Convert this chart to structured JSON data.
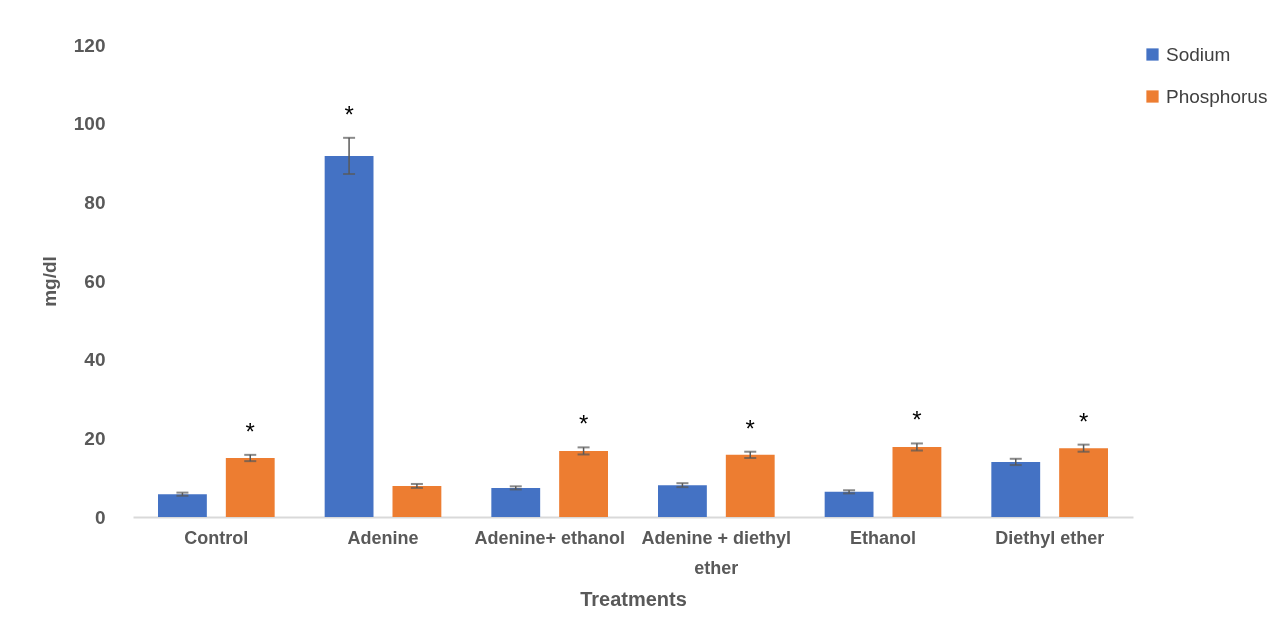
{
  "chart_data": {
    "type": "bar",
    "xlabel": "Treatments",
    "ylabel": "mg/dl",
    "categories": [
      "Control",
      "Adenine",
      "Adenine+ ethanol",
      "Adenine + diethyl ether",
      "Ethanol",
      "Diethyl ether"
    ],
    "series": [
      {
        "name": "Sodium",
        "color": "#4472c4",
        "values": [
          5.8,
          91.8,
          7.4,
          8.1,
          6.4,
          14.0
        ],
        "errors": [
          0.4,
          4.6,
          0.4,
          0.5,
          0.4,
          0.8
        ],
        "value_labels": [
          null,
          "*",
          null,
          null,
          null,
          null
        ]
      },
      {
        "name": "Phosphorus",
        "color": "#ed7d31",
        "values": [
          15.0,
          7.9,
          16.8,
          15.8,
          17.8,
          17.5
        ],
        "errors": [
          0.8,
          0.5,
          0.9,
          0.8,
          0.9,
          0.9
        ],
        "value_labels": [
          "*",
          null,
          "*",
          "*",
          "*",
          "*"
        ]
      }
    ],
    "ylim": [
      0,
      120
    ],
    "yticks": [
      0,
      20,
      40,
      60,
      80,
      100,
      120
    ],
    "grid": false,
    "legend": "right"
  }
}
